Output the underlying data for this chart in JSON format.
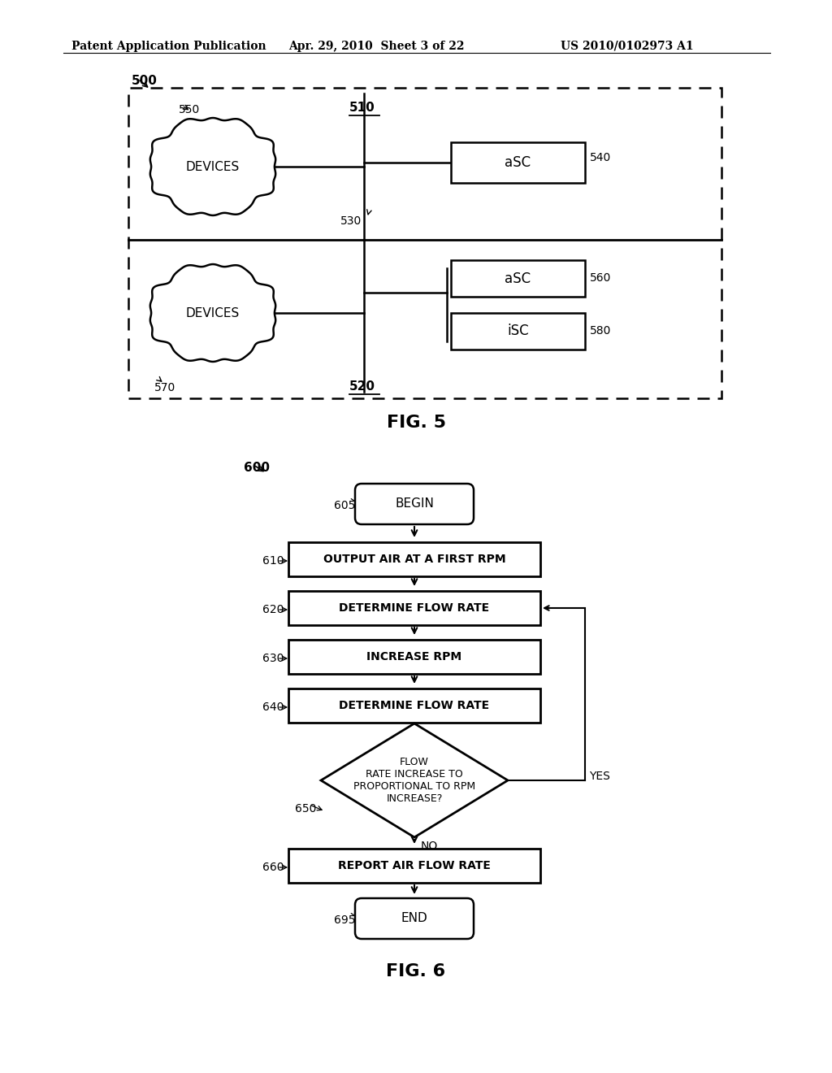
{
  "page_header_left": "Patent Application Publication",
  "page_header_mid": "Apr. 29, 2010  Sheet 3 of 22",
  "page_header_right": "US 2010/0102973 A1",
  "fig5_label": "FIG. 5",
  "fig6_label": "FIG. 6",
  "background": "#ffffff",
  "line_color": "#000000",
  "fig5": {
    "top_cloud_text": "DEVICES",
    "bottom_cloud_text": "DEVICES",
    "asc_top_text": "aSC",
    "asc_bottom_text": "aSC",
    "isc_text": "iSC"
  },
  "fig6": {
    "node_610": "OUTPUT AIR AT A FIRST RPM",
    "node_620": "DETERMINE FLOW RATE",
    "node_630": "INCREASE RPM",
    "node_640": "DETERMINE FLOW RATE",
    "node_650": "FLOW\nRATE INCREASE TO\nPROPORTIONAL TO RPM\nINCREASE?",
    "node_660": "REPORT AIR FLOW RATE",
    "yes_label": "YES",
    "no_label": "NO"
  }
}
